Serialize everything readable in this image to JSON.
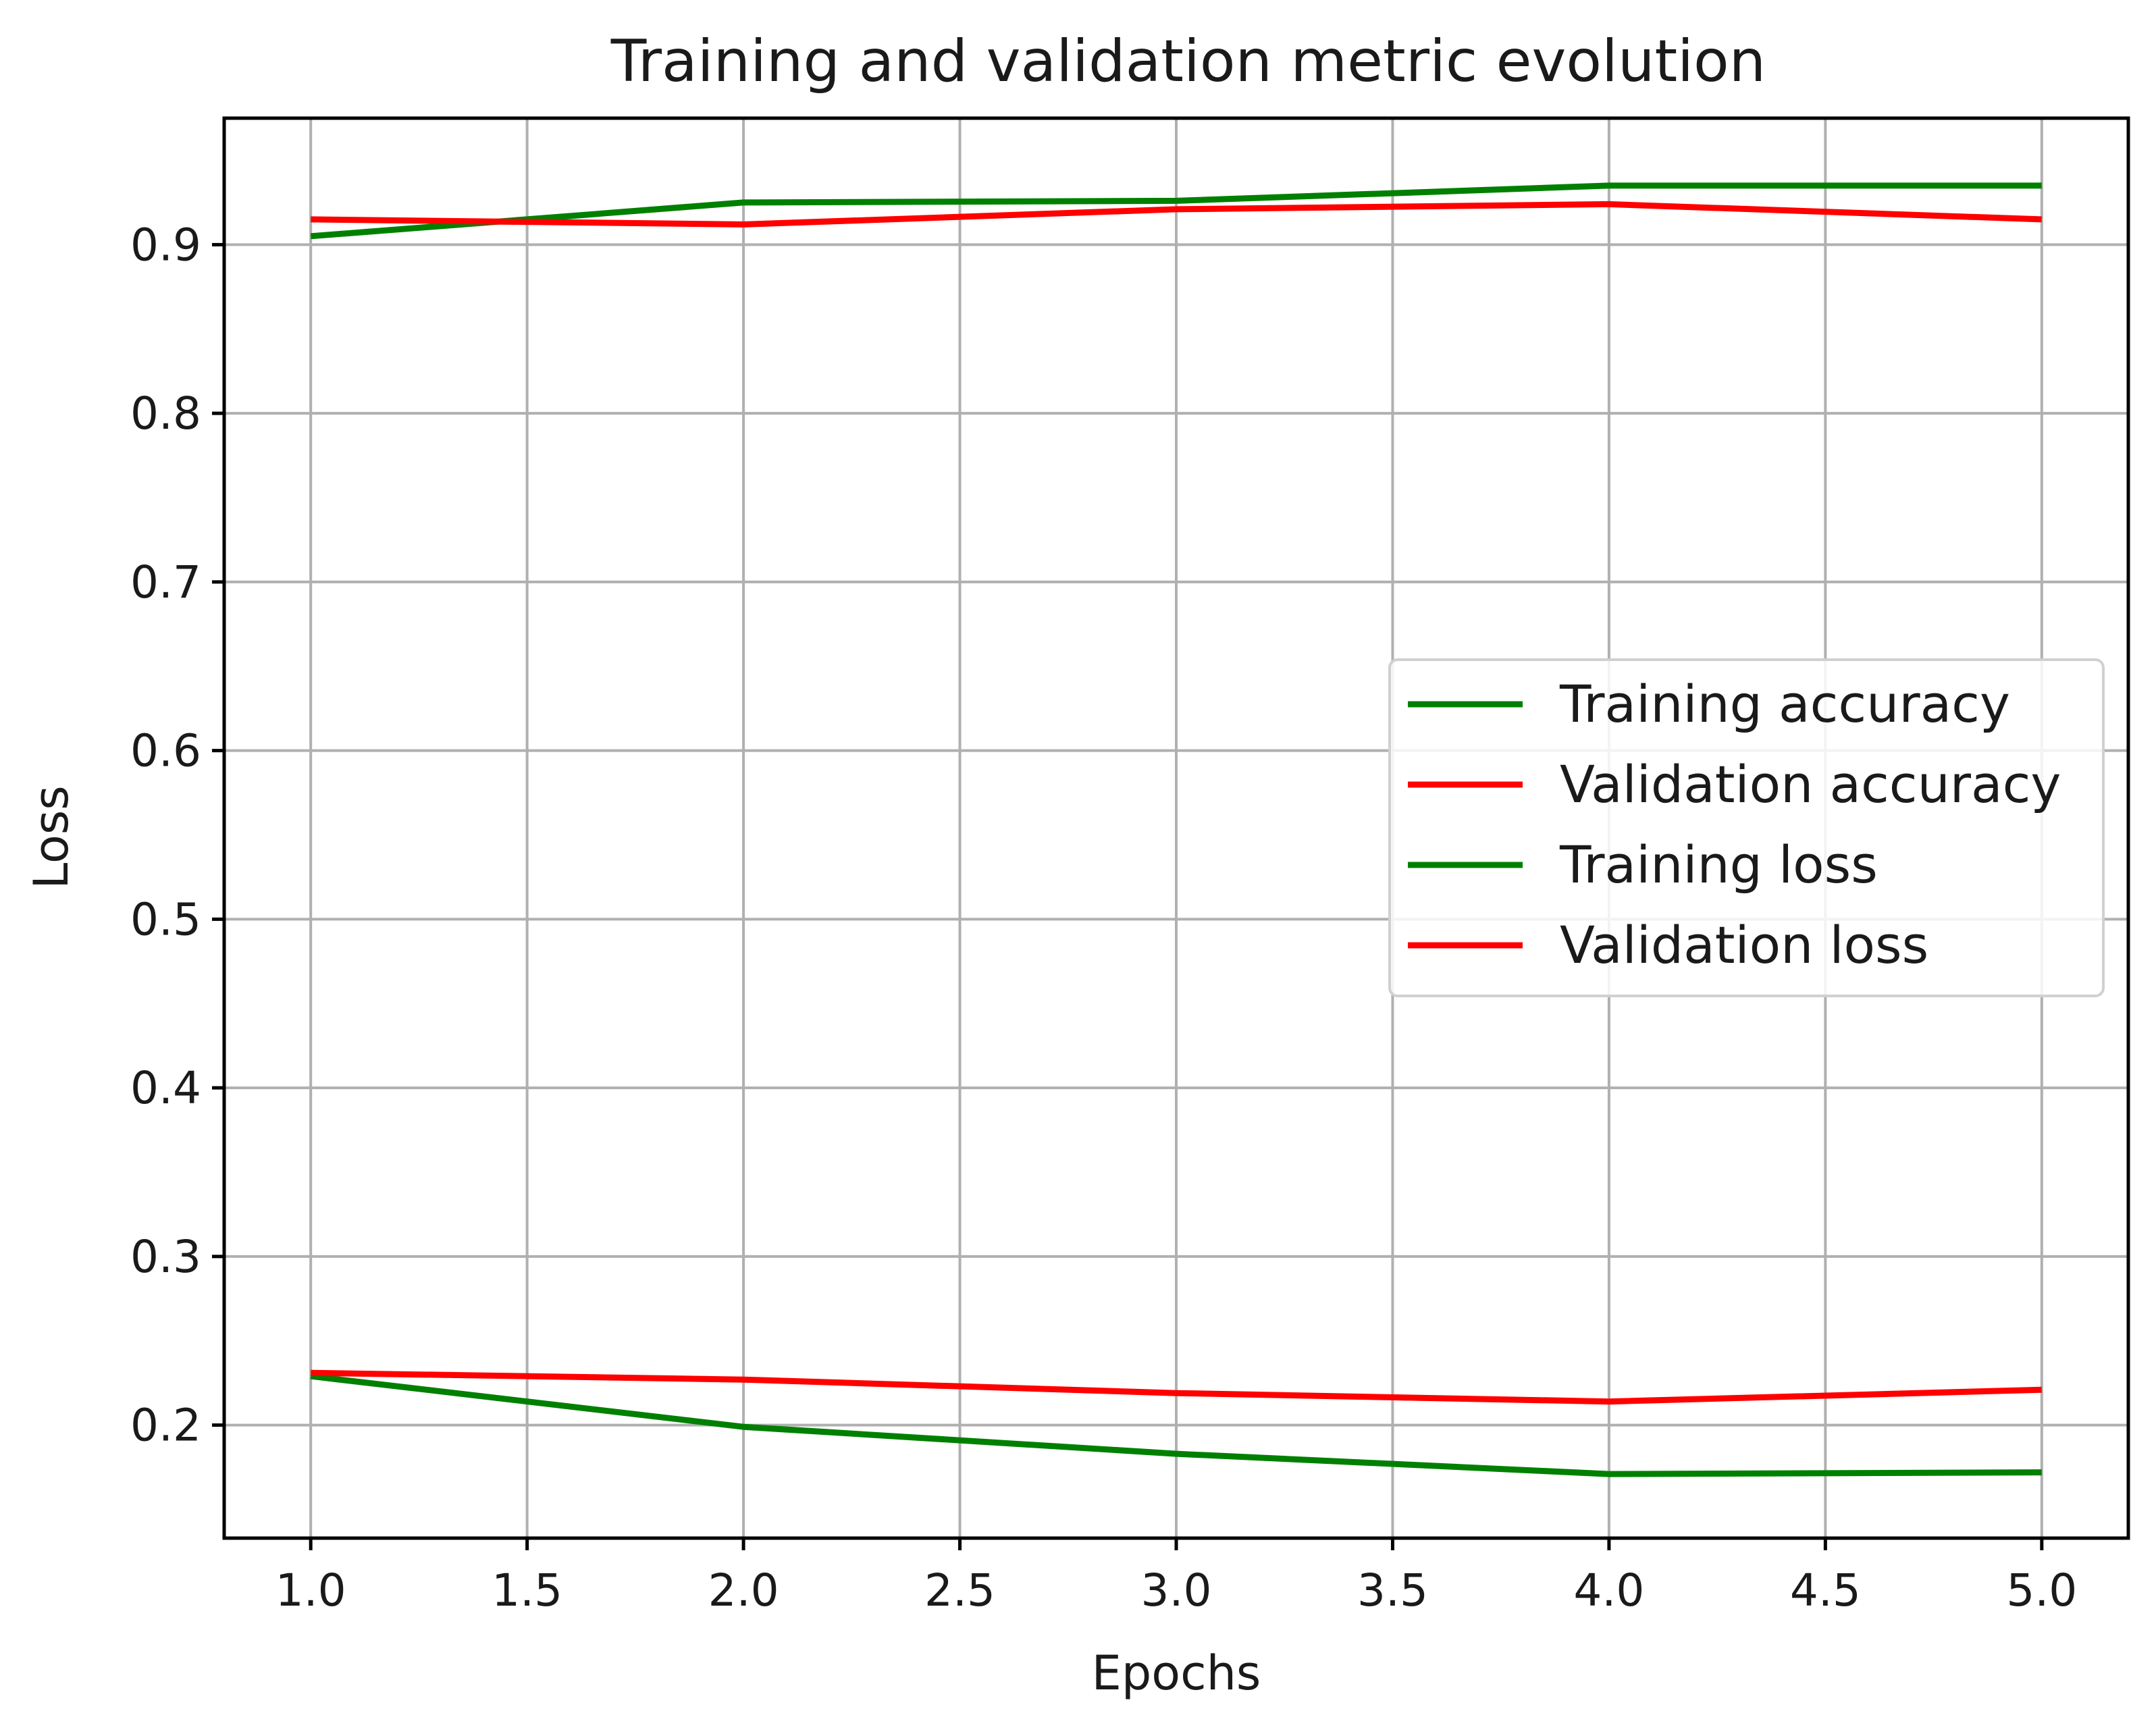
{
  "chart_data": {
    "type": "line",
    "title": "Training and validation metric evolution",
    "xlabel": "Epochs",
    "ylabel": "Loss",
    "x": [
      1,
      2,
      3,
      4,
      5
    ],
    "xlim": [
      0.8,
      5.2
    ],
    "ylim": [
      0.133,
      0.975
    ],
    "xticks": [
      1.0,
      1.5,
      2.0,
      2.5,
      3.0,
      3.5,
      4.0,
      4.5,
      5.0
    ],
    "xtick_labels": [
      "1.0",
      "1.5",
      "2.0",
      "2.5",
      "3.0",
      "3.5",
      "4.0",
      "4.5",
      "5.0"
    ],
    "yticks": [
      0.2,
      0.3,
      0.4,
      0.5,
      0.6,
      0.7,
      0.8,
      0.9
    ],
    "ytick_labels": [
      "0.2",
      "0.3",
      "0.4",
      "0.5",
      "0.6",
      "0.7",
      "0.8",
      "0.9"
    ],
    "grid": true,
    "legend_position": "center-right",
    "series": [
      {
        "name": "Training accuracy",
        "color": "#008000",
        "values": [
          0.905,
          0.925,
          0.926,
          0.935,
          0.935
        ]
      },
      {
        "name": "Validation accuracy",
        "color": "#ff0000",
        "values": [
          0.915,
          0.912,
          0.921,
          0.924,
          0.915
        ]
      },
      {
        "name": "Training loss",
        "color": "#008000",
        "values": [
          0.229,
          0.199,
          0.183,
          0.171,
          0.172
        ]
      },
      {
        "name": "Validation loss",
        "color": "#ff0000",
        "values": [
          0.231,
          0.227,
          0.219,
          0.214,
          0.221
        ]
      }
    ]
  }
}
